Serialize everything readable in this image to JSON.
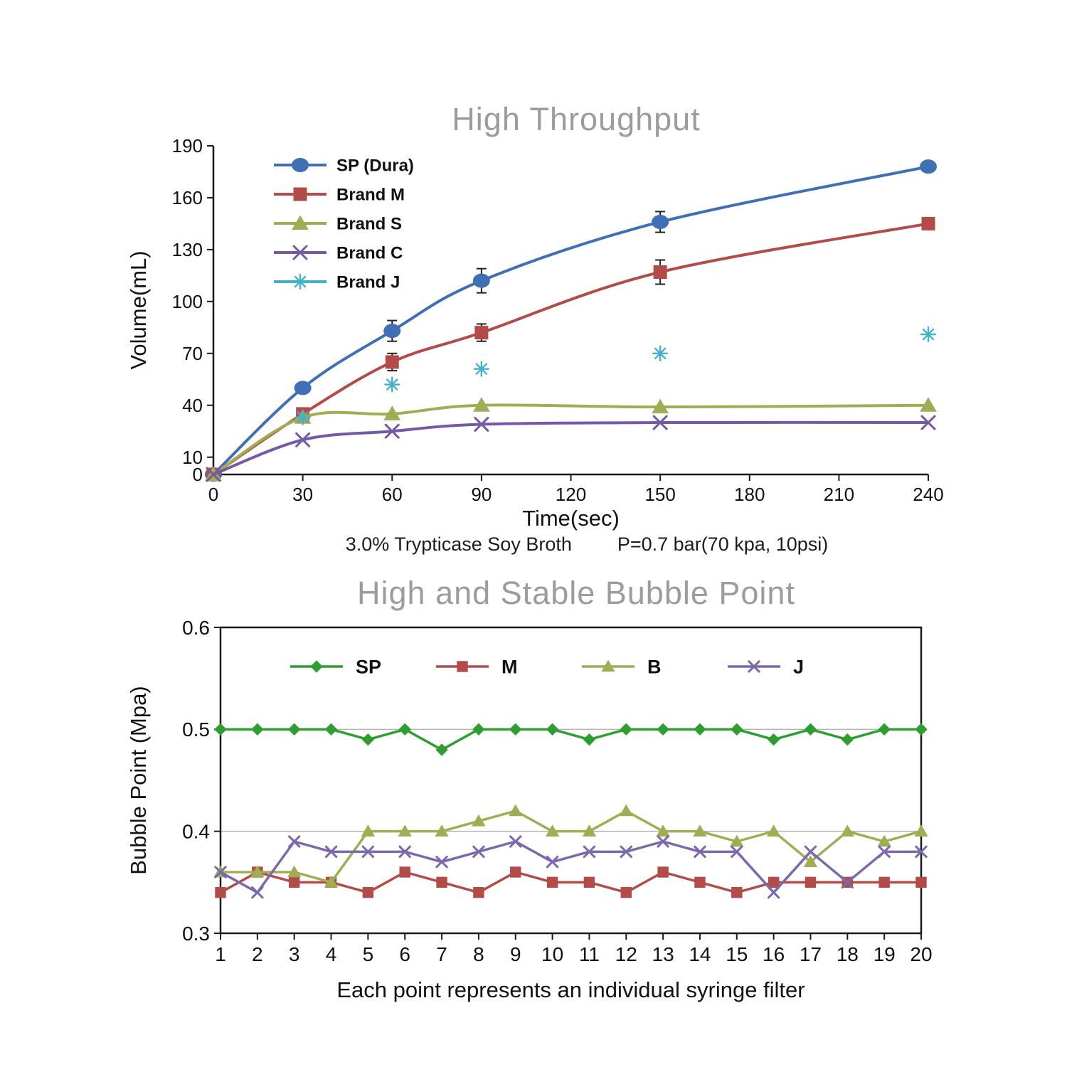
{
  "page": {
    "background": "#ffffff",
    "text_color": "#1c1c1c",
    "title_color": "#9c9c9c"
  },
  "chart_data": [
    {
      "name": "high-throughput",
      "type": "line",
      "title": "High Throughput",
      "xlabel": "Time(sec)",
      "ylabel": "Volume(mL)",
      "caption_left": "3.0% Trypticase Soy Broth",
      "caption_right": "P=0.7 bar(70 kpa, 10psi)",
      "xlim": [
        0,
        240
      ],
      "ylim": [
        0,
        190
      ],
      "xticks": [
        0,
        30,
        60,
        90,
        120,
        150,
        180,
        210,
        240
      ],
      "yticks": [
        0,
        10,
        40,
        70,
        100,
        130,
        160,
        190
      ],
      "grid": false,
      "frame": "axes",
      "smooth": true,
      "legend_position": "upper-left-vertical",
      "series": [
        {
          "name": "SP (Dura)",
          "color": "#3f6fb4",
          "marker": "circle",
          "line": true,
          "x": [
            0,
            30,
            60,
            90,
            150,
            240
          ],
          "y": [
            0,
            50,
            83,
            112,
            146,
            178
          ],
          "yerr": [
            0,
            0,
            6,
            7,
            6,
            0
          ]
        },
        {
          "name": "Brand M",
          "color": "#b34b48",
          "marker": "square",
          "line": true,
          "x": [
            0,
            30,
            60,
            90,
            150,
            240
          ],
          "y": [
            0,
            35,
            65,
            82,
            117,
            145
          ],
          "yerr": [
            0,
            3,
            5,
            5,
            7,
            0
          ]
        },
        {
          "name": "Brand S",
          "color": "#a0ad52",
          "marker": "triangle",
          "line": true,
          "x": [
            0,
            30,
            60,
            90,
            150,
            240
          ],
          "y": [
            0,
            33,
            35,
            40,
            39,
            40
          ]
        },
        {
          "name": "Brand C",
          "color": "#7459a7",
          "marker": "x",
          "line": true,
          "x": [
            0,
            30,
            60,
            90,
            150,
            240
          ],
          "y": [
            0,
            20,
            25,
            29,
            30,
            30
          ]
        },
        {
          "name": "Brand J",
          "color": "#45b0c9",
          "marker": "asterisk",
          "line": false,
          "x": [
            30,
            60,
            90,
            150,
            240
          ],
          "y": [
            33,
            52,
            61,
            70,
            81
          ]
        }
      ]
    },
    {
      "name": "bubble-point",
      "type": "line",
      "title": "High and Stable Bubble Point",
      "xlabel": "Each point represents an individual syringe filter",
      "ylabel": "Bubble Point (Mpa)",
      "xlim": [
        1,
        20
      ],
      "ylim": [
        0.3,
        0.6
      ],
      "xticks": [
        1,
        2,
        3,
        4,
        5,
        6,
        7,
        8,
        9,
        10,
        11,
        12,
        13,
        14,
        15,
        16,
        17,
        18,
        19,
        20
      ],
      "yticks": [
        0.3,
        0.4,
        0.5,
        0.6
      ],
      "grid_y": [
        0.4,
        0.5
      ],
      "frame": "box",
      "smooth": false,
      "legend_position": "top-horizontal",
      "x": [
        1,
        2,
        3,
        4,
        5,
        6,
        7,
        8,
        9,
        10,
        11,
        12,
        13,
        14,
        15,
        16,
        17,
        18,
        19,
        20
      ],
      "series": [
        {
          "name": "SP",
          "color": "#2f9e30",
          "marker": "diamond",
          "line": true,
          "y": [
            0.5,
            0.5,
            0.5,
            0.5,
            0.49,
            0.5,
            0.48,
            0.5,
            0.5,
            0.5,
            0.49,
            0.5,
            0.5,
            0.5,
            0.5,
            0.49,
            0.5,
            0.49,
            0.5,
            0.5
          ]
        },
        {
          "name": "M",
          "color": "#b34b48",
          "marker": "square",
          "line": true,
          "y": [
            0.34,
            0.36,
            0.35,
            0.35,
            0.34,
            0.36,
            0.35,
            0.34,
            0.36,
            0.35,
            0.35,
            0.34,
            0.36,
            0.35,
            0.34,
            0.35,
            0.35,
            0.35,
            0.35,
            0.35
          ]
        },
        {
          "name": "B",
          "color": "#a0ad52",
          "marker": "triangle",
          "line": true,
          "y": [
            0.36,
            0.36,
            0.36,
            0.35,
            0.4,
            0.4,
            0.4,
            0.41,
            0.42,
            0.4,
            0.4,
            0.42,
            0.4,
            0.4,
            0.39,
            0.4,
            0.37,
            0.4,
            0.39,
            0.4
          ]
        },
        {
          "name": "J",
          "color": "#7b68ae",
          "marker": "x",
          "line": true,
          "y": [
            0.36,
            0.34,
            0.39,
            0.38,
            0.38,
            0.38,
            0.37,
            0.38,
            0.39,
            0.37,
            0.38,
            0.38,
            0.39,
            0.38,
            0.38,
            0.34,
            0.38,
            0.35,
            0.38,
            0.38
          ]
        }
      ]
    }
  ]
}
